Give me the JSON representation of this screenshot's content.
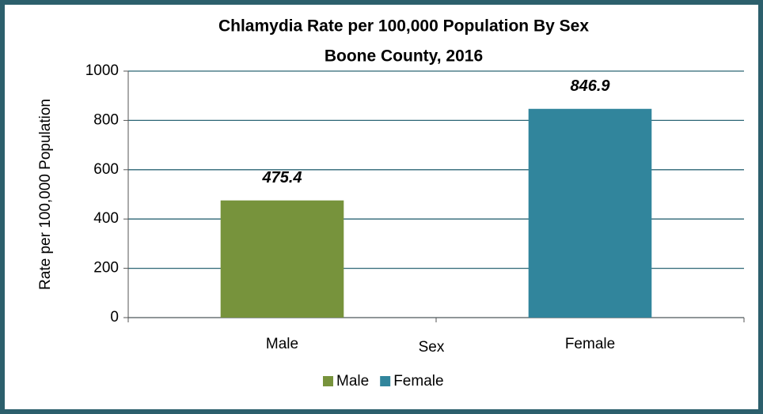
{
  "chart_data": {
    "type": "bar",
    "title": [
      "Chlamydia Rate per 100,000 Population By Sex",
      "Boone County, 2016"
    ],
    "x_label": "Sex",
    "y_label": "Rate per 100,000 Population",
    "categories": [
      "Male",
      "Female"
    ],
    "values": [
      475.4,
      846.9
    ],
    "colors": [
      "#77933c",
      "#31859c"
    ],
    "ylim": [
      0,
      1000
    ],
    "yticks": [
      0,
      200,
      400,
      600,
      800,
      1000
    ],
    "grid": true,
    "legend": "bottom"
  }
}
